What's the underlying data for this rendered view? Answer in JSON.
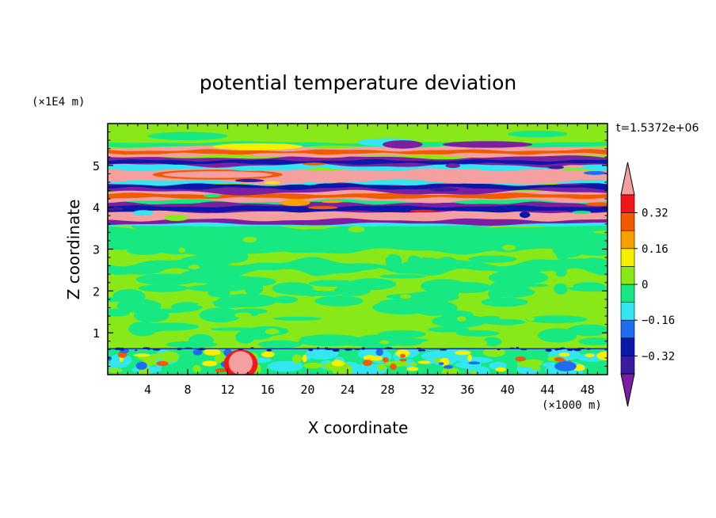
{
  "chart_data": {
    "type": "heatmap",
    "title": "potential temperature deviation",
    "xlabel": "X coordinate",
    "ylabel": "Z coordinate",
    "x_unit": "(×1000 m)",
    "y_unit": "(×1E4 m)",
    "time_label": "t=1.5372e+06",
    "xlim": [
      0,
      50
    ],
    "ylim": [
      0,
      6
    ],
    "x_ticks": [
      "4",
      "8",
      "12",
      "16",
      "20",
      "24",
      "28",
      "32",
      "36",
      "40",
      "44",
      "48"
    ],
    "y_ticks": [
      "1",
      "2",
      "3",
      "4",
      "5"
    ],
    "colorbar": {
      "tick_labels": [
        "0.32",
        "0.16",
        "0",
        "−0.16",
        "−0.32"
      ],
      "levels": [
        -0.4,
        -0.32,
        -0.24,
        -0.16,
        -0.08,
        0,
        0.08,
        0.16,
        0.24,
        0.32,
        0.4
      ],
      "colors": [
        "#7a1fa2",
        "#3a1aa0",
        "#0c16a8",
        "#1e6cf0",
        "#33e6f0",
        "#18e882",
        "#88e818",
        "#f6f000",
        "#f6a000",
        "#f05a00",
        "#f01818",
        "#f4a0a0"
      ]
    },
    "bands": [
      {
        "z": [
          0.0,
          0.6
        ],
        "pattern": "turbulent boundary layer, mixed positive and negative values"
      },
      {
        "z": [
          0.6,
          3.6
        ],
        "value_range": [
          -0.08,
          0.08
        ]
      },
      {
        "z": [
          3.6,
          5.5
        ],
        "pattern": "alternating strong positive (>0.4) and strong negative (<-0.4) layers"
      },
      {
        "z": [
          5.5,
          6.0
        ],
        "value_range": [
          -0.08,
          0.08
        ]
      }
    ]
  }
}
